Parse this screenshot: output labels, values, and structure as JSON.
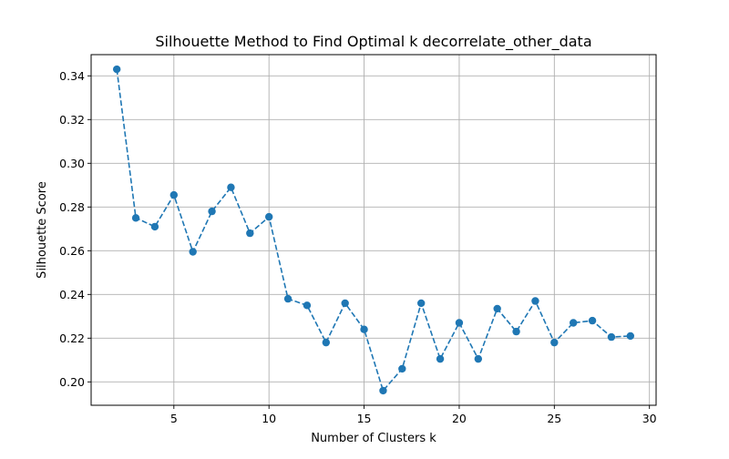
{
  "chart_data": {
    "type": "line",
    "title": "Silhouette Method to Find Optimal k decorrelate_other_data",
    "xlabel": "Number of Clusters k",
    "ylabel": "Silhouette Score",
    "xlim": [
      0.65,
      30.35
    ],
    "ylim": [
      0.1893,
      0.3497
    ],
    "xticks": [
      5,
      10,
      15,
      20,
      25,
      30
    ],
    "xtick_labels": [
      "5",
      "10",
      "15",
      "20",
      "25",
      "30"
    ],
    "yticks": [
      0.2,
      0.22,
      0.24,
      0.26,
      0.28,
      0.3,
      0.32,
      0.34
    ],
    "ytick_labels": [
      "0.20",
      "0.22",
      "0.24",
      "0.26",
      "0.28",
      "0.30",
      "0.32",
      "0.34"
    ],
    "grid": true,
    "line_style": "dashed",
    "marker": "circle",
    "color": "#1f77b4",
    "x": [
      2,
      3,
      4,
      5,
      6,
      7,
      8,
      9,
      10,
      11,
      12,
      13,
      14,
      15,
      16,
      17,
      18,
      19,
      20,
      21,
      22,
      23,
      24,
      25,
      26,
      27,
      28,
      29
    ],
    "values": [
      0.343,
      0.275,
      0.271,
      0.2855,
      0.2595,
      0.278,
      0.289,
      0.268,
      0.2755,
      0.238,
      0.235,
      0.218,
      0.236,
      0.224,
      0.196,
      0.206,
      0.236,
      0.2105,
      0.227,
      0.2105,
      0.2335,
      0.223,
      0.237,
      0.218,
      0.227,
      0.228,
      0.2205,
      0.221
    ]
  }
}
